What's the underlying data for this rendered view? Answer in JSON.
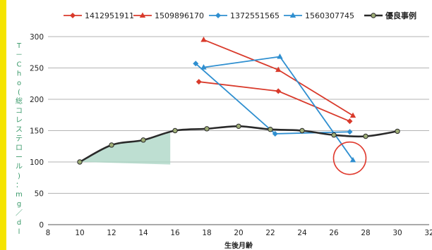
{
  "chart_data": {
    "type": "line",
    "xlabel": "生後月齢",
    "ylabel": "T－Cho(総コレステロール)：mg／dl",
    "xlim": [
      8,
      32
    ],
    "ylim": [
      0,
      300
    ],
    "xticks": [
      8,
      10,
      12,
      14,
      16,
      18,
      20,
      22,
      24,
      26,
      28,
      30,
      32
    ],
    "yticks": [
      0,
      50,
      100,
      150,
      200,
      250,
      300
    ],
    "grid": "horizontal",
    "legend_position": "top",
    "series": [
      {
        "name": "1412951911",
        "color": "#d93a2b",
        "marker": "diamond",
        "x": [
          17.5,
          22.5,
          27
        ],
        "y": [
          228,
          213,
          165
        ]
      },
      {
        "name": "1509896170",
        "color": "#d93a2b",
        "marker": "triangle",
        "x": [
          17.8,
          22.5,
          27.2
        ],
        "y": [
          295,
          247,
          174
        ]
      },
      {
        "name": "1372551565",
        "color": "#2f8fd0",
        "marker": "diamond",
        "x": [
          17.3,
          22.3,
          27
        ],
        "y": [
          257,
          145,
          148
        ]
      },
      {
        "name": "1560307745",
        "color": "#2f8fd0",
        "marker": "triangle",
        "x": [
          17.8,
          22.6,
          27.2
        ],
        "y": [
          251,
          268,
          103
        ]
      },
      {
        "name": "優良事例",
        "color": "#2a2a2a",
        "marker": "circle",
        "markerFill": "#9fae77",
        "x": [
          10,
          12,
          14,
          16,
          18,
          20,
          22,
          24,
          26,
          28,
          30
        ],
        "y": [
          100,
          127,
          135,
          150,
          153,
          157,
          152,
          150,
          143,
          141,
          149
        ]
      }
    ],
    "annotations": {
      "shaded_region": {
        "x_from": 10,
        "x_to": 15.7,
        "color": "#a8d4c3"
      },
      "circle": {
        "x": 27,
        "y": 106,
        "color": "#e03a2e"
      }
    }
  }
}
